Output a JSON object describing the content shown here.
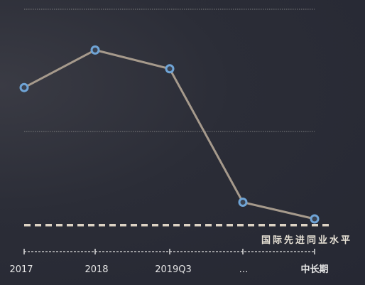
{
  "chart_data": {
    "type": "line",
    "categories": [
      "2017",
      "2018",
      "2019Q3",
      "…",
      "中长期"
    ],
    "series": [
      {
        "values": [
          78,
          96,
          87,
          23,
          15
        ]
      }
    ],
    "benchmark": {
      "label": "国际先进同业水平",
      "value": 12
    },
    "ylim": [
      0,
      120
    ],
    "grid": true,
    "colors": {
      "line": "#a69a8c",
      "marker_stroke": "#6fa4d6",
      "marker_fill": "#3b4250",
      "benchmark": "#ddd3c4",
      "grid": "#8a8a8a",
      "axis": "#dddddd"
    }
  }
}
